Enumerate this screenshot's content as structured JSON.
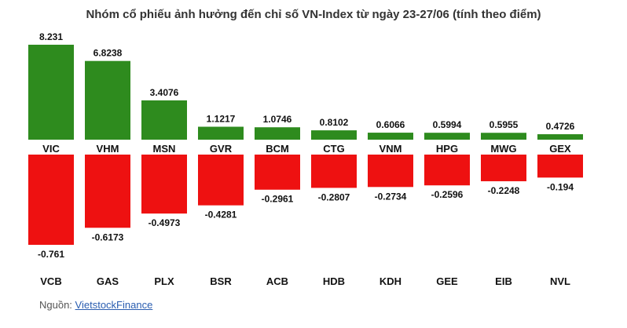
{
  "chart_data": {
    "type": "bar",
    "title": "Nhóm cổ phiếu ảnh hưởng đến chỉ số VN-Index từ ngày 23-27/06 (tính theo điểm)",
    "positive": {
      "categories": [
        "VIC",
        "VHM",
        "MSN",
        "GVR",
        "BCM",
        "CTG",
        "VNM",
        "HPG",
        "MWG",
        "GEX"
      ],
      "values": [
        8.231,
        6.8238,
        3.4076,
        1.1217,
        1.0746,
        0.8102,
        0.6066,
        0.5994,
        0.5955,
        0.4726
      ],
      "labels": [
        "8.231",
        "6.8238",
        "3.4076",
        "1.1217",
        "1.0746",
        "0.8102",
        "0.6066",
        "0.5994",
        "0.5955",
        "0.4726"
      ],
      "color": "#2e8b1e"
    },
    "negative": {
      "categories": [
        "VCB",
        "GAS",
        "PLX",
        "BSR",
        "ACB",
        "HDB",
        "KDH",
        "GEE",
        "EIB",
        "NVL"
      ],
      "values": [
        -0.761,
        -0.6173,
        -0.4973,
        -0.4281,
        -0.2961,
        -0.2807,
        -0.2734,
        -0.2596,
        -0.2248,
        -0.194
      ],
      "labels": [
        "-0.761",
        "-0.6173",
        "-0.4973",
        "-0.4281",
        "-0.2961",
        "-0.2807",
        "-0.2734",
        "-0.2596",
        "-0.2248",
        "-0.194"
      ],
      "color": "#ee1111"
    },
    "legend": "none",
    "grid": false
  },
  "source": {
    "label": "Nguồn: ",
    "link_text": "VietstockFinance"
  }
}
